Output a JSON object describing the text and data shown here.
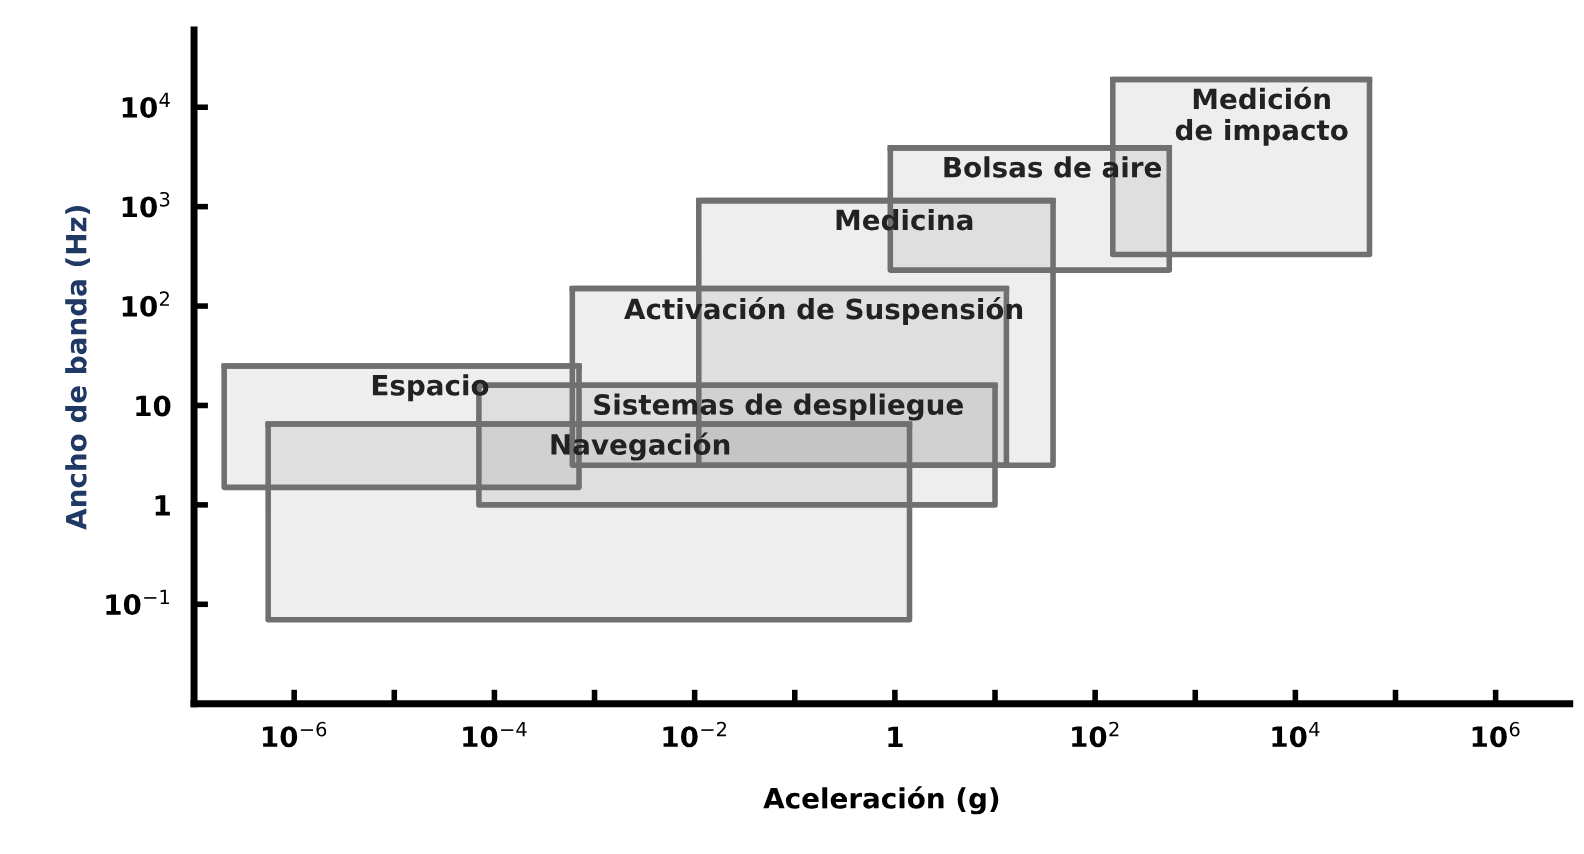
{
  "chart_data": {
    "type": "line",
    "xlabel": "Aceleración (g)",
    "ylabel": "Ancho de banda (Hz)",
    "log": "xy",
    "grid": false,
    "legend": false,
    "marker": "none",
    "line_style": "solid",
    "xlim": [
      1e-07,
      5500000.0
    ],
    "ylim": [
      0.01,
      60000
    ],
    "xticks": [
      {
        "value": 1e-06,
        "label": "10$^{−6}$"
      },
      {
        "value": 1e-05,
        "label": null
      },
      {
        "value": 0.0001,
        "label": "10$^{−4}$"
      },
      {
        "value": 0.001,
        "label": null
      },
      {
        "value": 0.01,
        "label": "10$^{−2}$"
      },
      {
        "value": 0.1,
        "label": null
      },
      1,
      {
        "value": 10,
        "label": null
      },
      {
        "value": 100,
        "label": "10$^{2}$"
      },
      {
        "value": 1000,
        "label": null
      },
      {
        "value": 10000,
        "label": "10$^{4}$"
      },
      {
        "value": 100000,
        "label": null
      },
      {
        "value": 1000000,
        "label": "10$^{6}$"
      }
    ],
    "yticks": [
      {
        "value": 0.1,
        "label": "10$^{−1}$"
      },
      1,
      10,
      {
        "value": 100,
        "label": "10$^{2}$"
      },
      {
        "value": 1000,
        "label": "10$^{3}$"
      },
      {
        "value": 10000,
        "label": "10$^{4}$"
      }
    ],
    "series": [
      {
        "name": "Espacio",
        "color": "#707070",
        "x": [
          2e-07,
          0.0007
        ],
        "values": [
          25,
          25
        ],
        "lower": [
          1.5,
          1.5
        ],
        "upper": [
          25,
          25
        ]
      },
      {
        "name": "Navegación",
        "color": "#707070",
        "x": [
          5.5e-07,
          1.4
        ],
        "values": [
          6.5,
          6.5
        ],
        "lower": [
          0.07,
          0.07
        ],
        "upper": [
          6.5,
          6.5
        ]
      },
      {
        "name": "Sistemas de despliegue",
        "color": "#707070",
        "x": [
          7e-05,
          10
        ],
        "values": [
          16,
          16
        ],
        "lower": [
          1,
          1
        ],
        "upper": [
          16,
          16
        ]
      },
      {
        "name": "Activación de Suspensión",
        "color": "#707070",
        "x": [
          0.0006,
          13
        ],
        "values": [
          150,
          150
        ],
        "lower": [
          2.5,
          2.5
        ],
        "upper": [
          150,
          150
        ]
      },
      {
        "name": "Medicina",
        "color": "#707070",
        "x": [
          0.011,
          38
        ],
        "values": [
          1150,
          1150
        ],
        "lower": [
          2.5,
          2.5
        ],
        "upper": [
          1150,
          1150
        ]
      },
      {
        "name": "Bolsas de aire",
        "color": "#707070",
        "x": [
          0.9,
          550
        ],
        "values": [
          3900,
          3900
        ],
        "lower": [
          230,
          230
        ],
        "upper": [
          3900,
          3900
        ]
      },
      {
        "name": "Medición\nde impacto",
        "color": "#707070",
        "x": [
          150,
          55000
        ],
        "values": [
          19000,
          19000
        ],
        "lower": [
          330,
          330
        ],
        "upper": [
          19000,
          19000
        ]
      }
    ]
  }
}
